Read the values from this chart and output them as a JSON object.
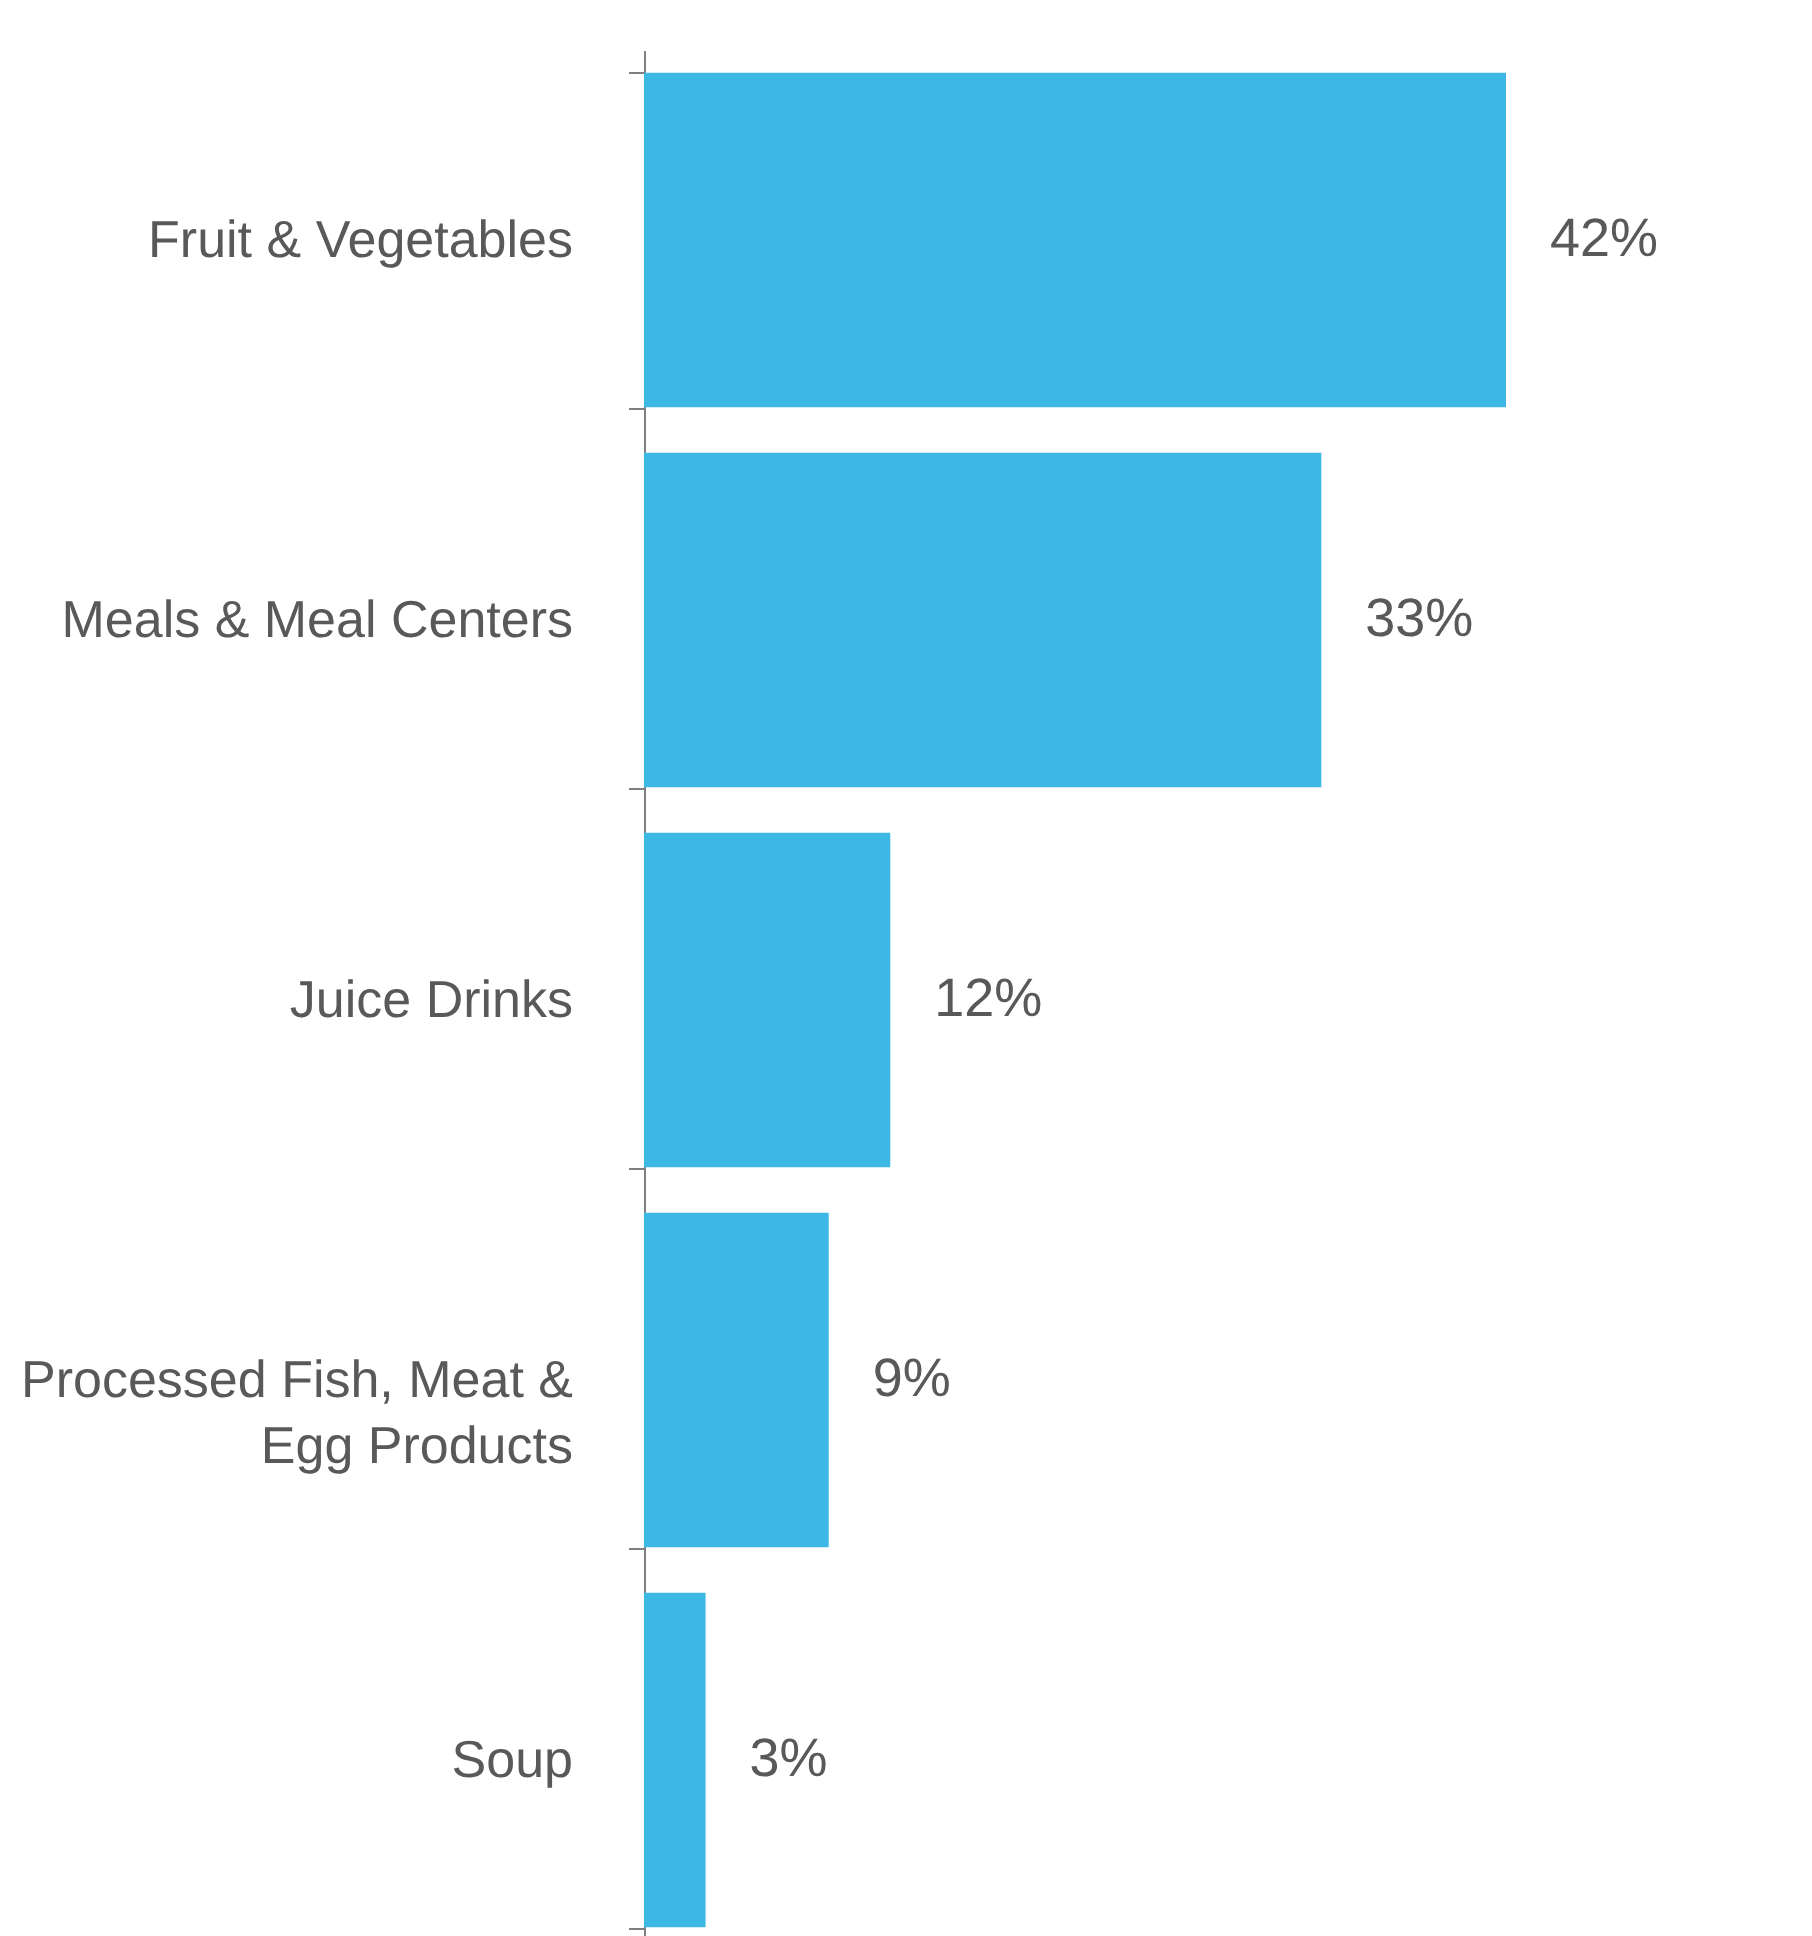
{
  "chart_data": {
    "type": "bar",
    "orientation": "horizontal",
    "categories": [
      "Fruit &  Vegetables",
      "Meals &  Meal Centers",
      "Juice Drinks",
      "Processed Fish, Meat & Egg Products",
      "Soup"
    ],
    "values": [
      42,
      33,
      12,
      9,
      3
    ],
    "color": "#3db7e4",
    "value_labels": [
      "42%",
      "33%",
      "12%",
      "9%",
      "3%"
    ],
    "tick_labels": "y"
  }
}
